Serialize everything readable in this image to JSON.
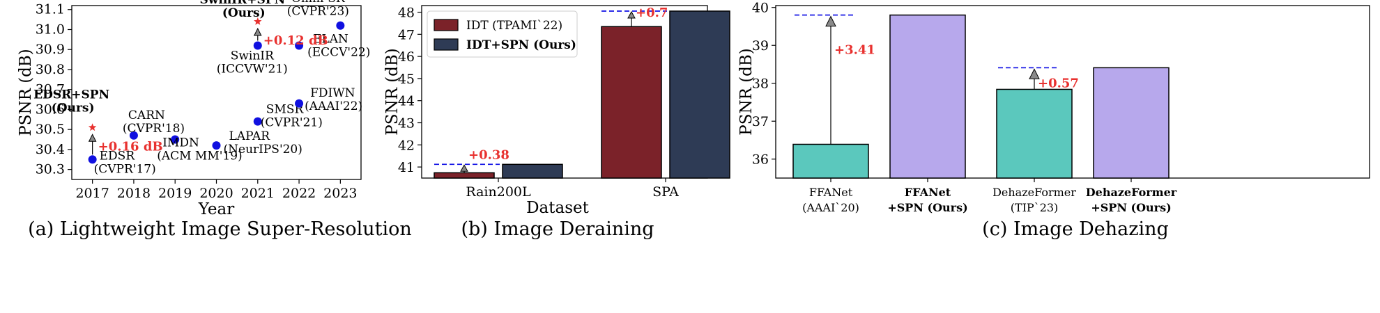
{
  "chart_data": [
    {
      "type": "scatter",
      "caption": "(a) Lightweight Image Super-Resolution",
      "xlabel": "Year",
      "ylabel": "PSNR (dB)",
      "xlim": [
        2016.5,
        2023.5
      ],
      "ylim": [
        30.25,
        31.12
      ],
      "xticks": [
        2017,
        2018,
        2019,
        2020,
        2021,
        2022,
        2023
      ],
      "yticks": [
        30.3,
        30.4,
        30.5,
        30.6,
        30.7,
        30.8,
        30.9,
        31.0,
        31.1
      ],
      "grid": false,
      "points": [
        {
          "name": "EDSR",
          "venue": "(CVPR'17)",
          "x": 2017,
          "y": 30.35
        },
        {
          "name": "CARN",
          "venue": "(CVPR'18)",
          "x": 2018,
          "y": 30.47
        },
        {
          "name": "IMDN",
          "venue": "(ACM MM'19)",
          "x": 2019,
          "y": 30.45
        },
        {
          "name": "LAPAR",
          "venue": "(NeurIPS'20)",
          "x": 2020,
          "y": 30.42
        },
        {
          "name": "SMSR",
          "venue": "(CVPR'21)",
          "x": 2021,
          "y": 30.54
        },
        {
          "name": "SwinIR",
          "venue": "(ICCVW'21)",
          "x": 2021,
          "y": 30.92
        },
        {
          "name": "ELAN",
          "venue": "(ECCV'22)",
          "x": 2022,
          "y": 30.92
        },
        {
          "name": "FDIWN",
          "venue": "(AAAI'22)",
          "x": 2022,
          "y": 30.63
        },
        {
          "name": "Omni-SR",
          "venue": "(CVPR'23)",
          "x": 2023,
          "y": 31.02
        }
      ],
      "ours": [
        {
          "name": "EDSR+SPN",
          "sub": "(Ours)",
          "x": 2017,
          "y": 30.51,
          "base_y": 30.35,
          "gain": "+0.16 dB"
        },
        {
          "name": "SwinIR+SPN",
          "sub": "(Ours)",
          "x": 2021,
          "y": 31.04,
          "base_y": 30.92,
          "gain": "+0.12 dB"
        }
      ],
      "colors": {
        "points": "#1010e0",
        "ours": "#e8312f"
      }
    },
    {
      "type": "bar",
      "caption": "(b) Image Deraining",
      "xlabel": "Dataset",
      "ylabel": "PSNR (dB)",
      "ylim": [
        40.5,
        48.3
      ],
      "yticks": [
        41,
        42,
        43,
        44,
        45,
        46,
        47,
        48
      ],
      "categories": [
        "Rain200L",
        "SPA"
      ],
      "series": [
        {
          "name": "IDT (TPAMI`22)",
          "values": [
            40.74,
            47.35
          ],
          "color": "#7b2229"
        },
        {
          "name": "IDT+SPN (Ours)",
          "values": [
            41.12,
            48.05
          ],
          "color": "#2e3b55"
        }
      ],
      "gains": [
        "+0.38",
        "+0.7"
      ],
      "legend": "top-left"
    },
    {
      "type": "bar",
      "caption": "(c) Image Dehazing",
      "xlabel": "",
      "ylabel": "PSNR (dB)",
      "ylim": [
        35.5,
        40.05
      ],
      "yticks": [
        36,
        37,
        38,
        39,
        40
      ],
      "categories": [
        {
          "line1": "FFANet",
          "line2": "(AAAI`20)",
          "bold": false
        },
        {
          "line1": "FFANet",
          "line2": "+SPN (Ours)",
          "bold": true
        },
        {
          "line1": "DehazeFormer",
          "line2": "(TIP`23)",
          "bold": false
        },
        {
          "line1": "DehazeFormer",
          "line2": "+SPN (Ours)",
          "bold": true
        }
      ],
      "values": [
        36.39,
        39.8,
        37.84,
        38.41
      ],
      "colors": [
        "#5bc8bd",
        "#b7a8ec",
        "#5bc8bd",
        "#b7a8ec"
      ],
      "gains": [
        "+3.41",
        "+0.57"
      ]
    }
  ]
}
